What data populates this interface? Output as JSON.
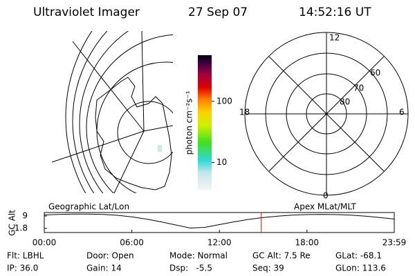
{
  "header": {
    "instrument": "Ultraviolet Imager",
    "date": "27 Sep 07",
    "time": "14:52:16 UT"
  },
  "colorbar": {
    "label": "photon cm⁻²s⁻¹",
    "log": true,
    "clim": [
      3.6,
      565
    ],
    "cticks": [
      100,
      10
    ]
  },
  "polar": {
    "mlt_labels": [
      "12",
      "18",
      "6",
      "0"
    ],
    "lat_labels": [
      "60",
      "70",
      "80"
    ]
  },
  "chart_data": {
    "type": "line",
    "left_label": "Geographic Lat/Lon",
    "right_label": "Apex MLat/MLT",
    "y_label": "GC Alt",
    "x": [
      0,
      1,
      2,
      3,
      4,
      5,
      6,
      7,
      8,
      9,
      10,
      11,
      12,
      13,
      14,
      15,
      16,
      17,
      18,
      19,
      20,
      21,
      22,
      23,
      23.983
    ],
    "values": [
      9.6,
      9.9,
      10.1,
      10.1,
      9.9,
      9.4,
      8.5,
      7.2,
      5.6,
      3.8,
      2.0,
      2.4,
      4.0,
      5.6,
      7.0,
      8.1,
      8.9,
      9.5,
      9.8,
      9.9,
      9.8,
      9.5,
      8.9,
      8.1,
      7.2
    ],
    "color": "#000000",
    "marker_x": 14.871,
    "marker_color": "#ff0000",
    "xlim": [
      0,
      23.983
    ],
    "ylim": [
      -0.6,
      11.0
    ],
    "xticks": [
      {
        "value": 0,
        "label": "00:00"
      },
      {
        "value": 6,
        "label": "06:00"
      },
      {
        "value": 12,
        "label": "12:00"
      },
      {
        "value": 18,
        "label": "18:00"
      },
      {
        "value": 23.983,
        "label": "23:59"
      }
    ],
    "yticks": [
      9.0,
      1.8
    ]
  },
  "footer": {
    "rows": [
      [
        "Flt: LBHL",
        "Door: Open",
        "Mode: Normal",
        "GC Alt: 7.5 Re",
        "GLat: -68.1"
      ],
      [
        "IP: 36.0",
        "Gain: 14",
        "Dsp:   -5.5",
        "Seq: 39",
        "GLon: 113.6"
      ]
    ]
  }
}
